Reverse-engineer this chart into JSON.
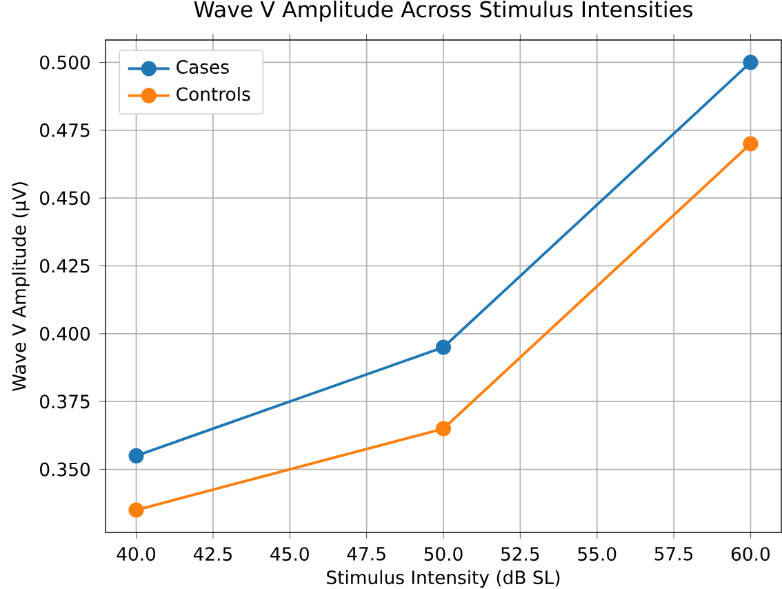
{
  "chart_data": {
    "type": "line",
    "title": "Wave V Amplitude Across Stimulus Intensities",
    "xlabel": "Stimulus Intensity (dB SL)",
    "ylabel": "Wave V Amplitude (µV)",
    "x": [
      40,
      50,
      60
    ],
    "series": [
      {
        "name": "Cases",
        "color": "#1f77b4",
        "values": [
          0.355,
          0.395,
          0.5
        ]
      },
      {
        "name": "Controls",
        "color": "#ff7f0e",
        "values": [
          0.335,
          0.365,
          0.47
        ]
      }
    ],
    "xlim": [
      39,
      61
    ],
    "ylim": [
      0.32675,
      0.50825
    ],
    "xticks": [
      {
        "value": 40,
        "label": "40.0"
      },
      {
        "value": 42.5,
        "label": "42.5"
      },
      {
        "value": 45,
        "label": "45.0"
      },
      {
        "value": 47.5,
        "label": "47.5"
      },
      {
        "value": 50,
        "label": "50.0"
      },
      {
        "value": 52.5,
        "label": "52.5"
      },
      {
        "value": 55,
        "label": "55.0"
      },
      {
        "value": 57.5,
        "label": "57.5"
      },
      {
        "value": 60,
        "label": "60.0"
      }
    ],
    "yticks": [
      {
        "value": 0.35,
        "label": "0.350"
      },
      {
        "value": 0.375,
        "label": "0.375"
      },
      {
        "value": 0.4,
        "label": "0.400"
      },
      {
        "value": 0.425,
        "label": "0.425"
      },
      {
        "value": 0.45,
        "label": "0.450"
      },
      {
        "value": 0.475,
        "label": "0.475"
      },
      {
        "value": 0.5,
        "label": "0.500"
      }
    ],
    "grid": true,
    "legend": "top left",
    "marker": "circle",
    "line_style": "solid"
  }
}
